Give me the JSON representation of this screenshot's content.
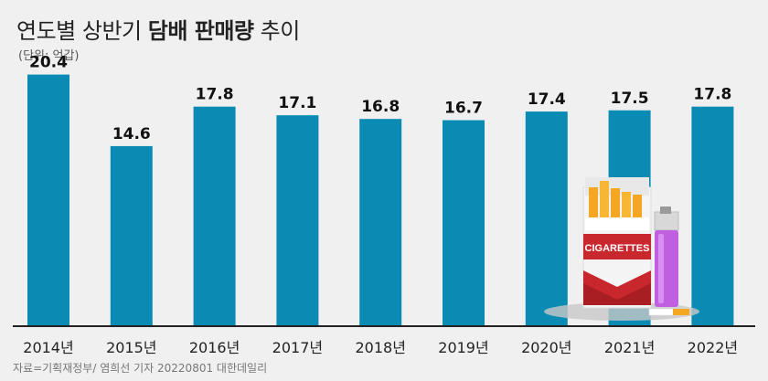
{
  "header": {
    "title_light_1": "연도별 상반기 ",
    "title_bold": "담배 판매량",
    "title_light_2": " 추이",
    "unit": "(단위: 억갑)"
  },
  "source": "자료=기획재정부/ 염희선 기자 20220801 대한데일리",
  "illustration": {
    "pack_label": "CIGARETTES",
    "icon": "cigarette-pack-and-lighter-illustration"
  },
  "colors": {
    "bar": "#0a8bb3",
    "background": "#f0f0f0",
    "pack_red": "#c8282d",
    "lighter_purple": "#c060e0"
  },
  "chart_data": {
    "type": "bar",
    "categories": [
      "2014년",
      "2015년",
      "2016년",
      "2017년",
      "2018년",
      "2019년",
      "2020년",
      "2021년",
      "2022년"
    ],
    "values": [
      20.4,
      14.6,
      17.8,
      17.1,
      16.8,
      16.7,
      17.4,
      17.5,
      17.8
    ],
    "value_labels": [
      "20.4",
      "14.6",
      "17.8",
      "17.1",
      "16.8",
      "16.7",
      "17.4",
      "17.5",
      "17.8"
    ],
    "title": "연도별 상반기 담배 판매량 추이",
    "ylabel": "(단위: 억갑)",
    "ylim": [
      0,
      22
    ],
    "grid": false,
    "legend": "none"
  }
}
